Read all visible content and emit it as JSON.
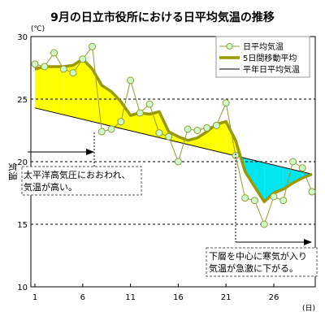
{
  "chart_data": {
    "type": "line",
    "title": "9月の日立市役所における日平均気温の推移",
    "ylabel": "気温",
    "yunit": "(℃)",
    "xunit": "(日)",
    "xlim": [
      1,
      30
    ],
    "ylim": [
      10,
      30
    ],
    "xticks": [
      1,
      6,
      11,
      16,
      21,
      26
    ],
    "yticks": [
      10,
      15,
      20,
      25,
      30
    ],
    "grid": "horizontal-dashed",
    "legend_position": "top-right",
    "series": [
      {
        "name": "日平均気温",
        "color": "#999933",
        "marker": "circle",
        "x": [
          1,
          2,
          3,
          4,
          5,
          6,
          7,
          8,
          9,
          10,
          11,
          12,
          13,
          14,
          15,
          16,
          17,
          18,
          19,
          20,
          21,
          22,
          23,
          24,
          25,
          26,
          27,
          28,
          29,
          30
        ],
        "values": [
          27.8,
          27.6,
          28.7,
          27.4,
          27.1,
          28.2,
          29.2,
          22.4,
          22.6,
          23.2,
          26.5,
          23.9,
          24.6,
          22.3,
          22.0,
          20.0,
          22.6,
          22.5,
          22.7,
          22.9,
          24.7,
          20.5,
          17.1,
          16.9,
          15.0,
          17.2,
          16.9,
          20.0,
          19.5,
          17.6
        ]
      },
      {
        "name": "5日間移動平均",
        "color": "#999900",
        "x": [
          1,
          2,
          3,
          4,
          5,
          6,
          7,
          8,
          9,
          10,
          11,
          12,
          13,
          14,
          15,
          16,
          17,
          18,
          19,
          20,
          21,
          22,
          23,
          24,
          25,
          26,
          27,
          28,
          29,
          30
        ],
        "values": [
          27.4,
          27.6,
          27.6,
          27.6,
          27.7,
          28.2,
          27.4,
          26.1,
          25.6,
          24.8,
          23.7,
          23.9,
          23.8,
          24.0,
          22.4,
          22.0,
          21.7,
          21.9,
          22.4,
          23.0,
          23.2,
          21.7,
          19.2,
          18.0,
          16.8,
          17.5,
          17.8,
          18.3,
          18.7,
          19.0
        ]
      },
      {
        "name": "平年日平均気温",
        "color": "#000000",
        "x": [
          1,
          30
        ],
        "values": [
          24.3,
          19.0
        ]
      }
    ],
    "annotations": [
      "太平洋高気圧におおわれ、",
      "気温が高い。",
      "下層を中心に寒気が入り",
      "気温が急激に下がる。"
    ]
  },
  "fill_colors": {
    "above": "#ffff00",
    "below": "#00e5ee"
  }
}
